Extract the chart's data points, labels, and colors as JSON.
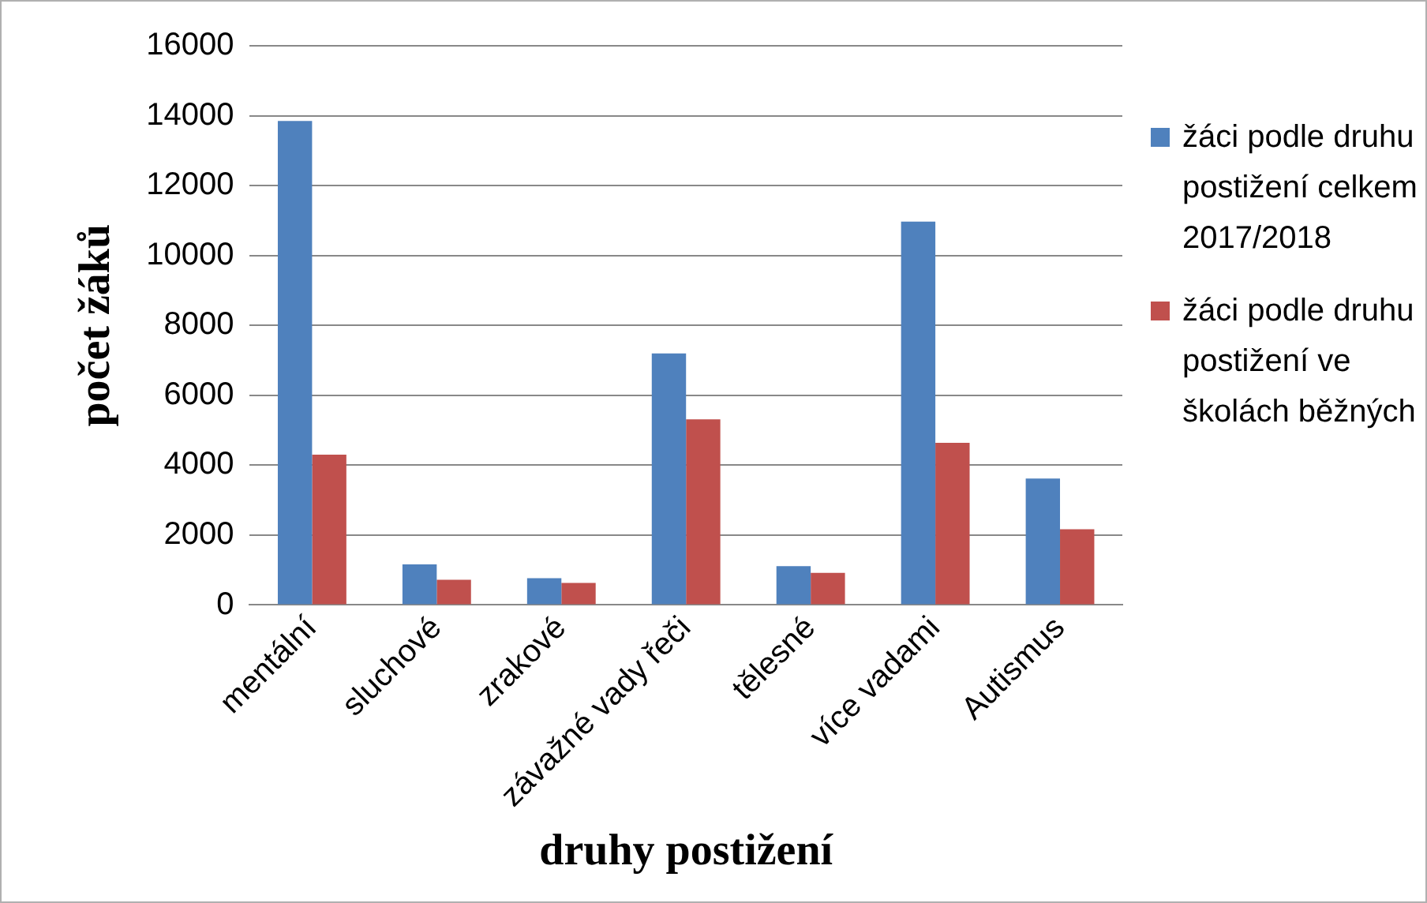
{
  "chart_data": {
    "type": "bar",
    "xlabel": "druhy postižení",
    "ylabel": "počet žáků",
    "categories": [
      "mentální",
      "sluchové",
      "zrakové",
      "závažné vady řeči",
      "tělesné",
      "více vadami",
      "Autismus"
    ],
    "series": [
      {
        "name": "žáci podle druhu postižení celkem 2017/2018",
        "color": "#4f81bd",
        "values": [
          13850,
          1160,
          770,
          7200,
          1110,
          10970,
          3620
        ]
      },
      {
        "name": "žáci podle druhu postižení ve školách běžných",
        "color": "#c0504d",
        "values": [
          4300,
          720,
          630,
          5310,
          920,
          4640,
          2170
        ]
      }
    ],
    "ylim": [
      0,
      16000
    ],
    "yticks": [
      0,
      2000,
      4000,
      6000,
      8000,
      10000,
      12000,
      14000,
      16000
    ],
    "grid": "y",
    "legend": "right"
  }
}
